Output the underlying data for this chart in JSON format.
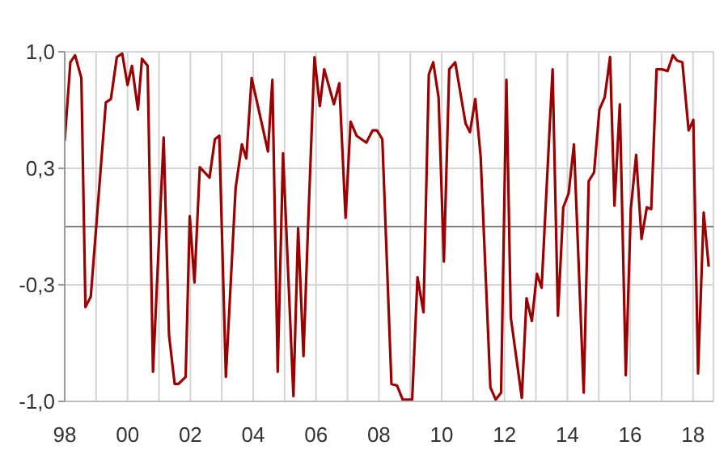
{
  "chart_data": {
    "type": "line",
    "x": [
      1998.0,
      1998.18,
      1998.33,
      1998.53,
      1998.66,
      1998.83,
      1999.31,
      1999.47,
      1999.66,
      1999.83,
      2000.0,
      2000.14,
      2000.33,
      2000.46,
      2000.64,
      2000.81,
      2001.15,
      2001.32,
      2001.5,
      2001.62,
      2001.85,
      2001.98,
      2002.13,
      2002.3,
      2002.61,
      2002.78,
      2002.92,
      2003.13,
      2003.44,
      2003.64,
      2003.78,
      2003.95,
      2004.47,
      2004.61,
      2004.78,
      2004.95,
      2005.28,
      2005.43,
      2005.6,
      2005.74,
      2005.95,
      2006.12,
      2006.26,
      2006.57,
      2006.74,
      2006.94,
      2007.1,
      2007.29,
      2007.6,
      2007.8,
      2007.94,
      2008.11,
      2008.4,
      2008.58,
      2008.76,
      2009.06,
      2009.23,
      2009.42,
      2009.59,
      2009.73,
      2009.9,
      2010.07,
      2010.24,
      2010.43,
      2010.76,
      2010.9,
      2011.07,
      2011.24,
      2011.55,
      2011.72,
      2011.89,
      2012.06,
      2012.2,
      2012.55,
      2012.7,
      2012.87,
      2013.03,
      2013.18,
      2013.53,
      2013.7,
      2013.87,
      2014.04,
      2014.21,
      2014.52,
      2014.68,
      2014.85,
      2015.02,
      2015.19,
      2015.36,
      2015.5,
      2015.67,
      2015.86,
      2016.02,
      2016.19,
      2016.36,
      2016.53,
      2016.67,
      2016.84,
      2017.01,
      2017.19,
      2017.36,
      2017.49,
      2017.66,
      2017.86,
      2018.01,
      2018.16,
      2018.34,
      2018.5
    ],
    "series": [
      {
        "color": "#990000",
        "values": [
          0.49,
          0.94,
          0.98,
          0.85,
          -0.46,
          -0.4,
          0.71,
          0.73,
          0.97,
          0.99,
          0.81,
          0.92,
          0.67,
          0.96,
          0.92,
          -0.83,
          0.51,
          -0.62,
          -0.9,
          -0.9,
          -0.86,
          0.06,
          -0.32,
          0.34,
          0.28,
          0.5,
          0.52,
          -0.86,
          0.22,
          0.47,
          0.39,
          0.85,
          0.43,
          0.84,
          -0.83,
          0.42,
          -0.97,
          -0.01,
          -0.74,
          -0.03,
          0.97,
          0.69,
          0.9,
          0.7,
          0.82,
          0.05,
          0.6,
          0.52,
          0.48,
          0.55,
          0.55,
          0.5,
          -0.9,
          -0.91,
          -0.99,
          -0.99,
          -0.29,
          -0.49,
          0.87,
          0.94,
          0.74,
          -0.2,
          0.9,
          0.94,
          0.59,
          0.54,
          0.73,
          0.4,
          -0.92,
          -0.99,
          -0.95,
          0.84,
          -0.52,
          -0.98,
          -0.41,
          -0.54,
          -0.27,
          -0.35,
          0.9,
          -0.51,
          0.11,
          0.19,
          0.47,
          -0.95,
          0.26,
          0.31,
          0.67,
          0.74,
          0.97,
          0.12,
          0.7,
          -0.85,
          0.1,
          0.41,
          -0.07,
          0.11,
          0.1,
          0.9,
          0.9,
          0.89,
          0.98,
          0.95,
          0.94,
          0.55,
          0.61,
          -0.84,
          0.08,
          -0.23
        ]
      }
    ],
    "xlim": [
      1998,
      2018.65
    ],
    "xticks": [
      {
        "value": 1998,
        "label": "98"
      },
      {
        "value": 1999,
        "label": null
      },
      {
        "value": 2000,
        "label": "00"
      },
      {
        "value": 2001,
        "label": null
      },
      {
        "value": 2002,
        "label": "02"
      },
      {
        "value": 2003,
        "label": null
      },
      {
        "value": 2004,
        "label": "04"
      },
      {
        "value": 2005,
        "label": null
      },
      {
        "value": 2006,
        "label": "06"
      },
      {
        "value": 2007,
        "label": null
      },
      {
        "value": 2008,
        "label": "08"
      },
      {
        "value": 2009,
        "label": null
      },
      {
        "value": 2010,
        "label": "10"
      },
      {
        "value": 2011,
        "label": null
      },
      {
        "value": 2012,
        "label": "12"
      },
      {
        "value": 2013,
        "label": null
      },
      {
        "value": 2014,
        "label": "14"
      },
      {
        "value": 2015,
        "label": null
      },
      {
        "value": 2016,
        "label": "16"
      },
      {
        "value": 2017,
        "label": null
      },
      {
        "value": 2018,
        "label": "18"
      }
    ],
    "ylim": [
      -1,
      1
    ],
    "yticks": [
      {
        "value": -1,
        "label": "-1,0"
      },
      {
        "value": -0.333,
        "label": "-0,3"
      },
      {
        "value": 0.333,
        "label": "0,3"
      },
      {
        "value": 1,
        "label": "1,0"
      }
    ],
    "ref_lines": [
      {
        "axis": "y",
        "value": 0,
        "color": "#808080"
      }
    ],
    "grid": true,
    "marker": "none",
    "line_style": "solid"
  }
}
